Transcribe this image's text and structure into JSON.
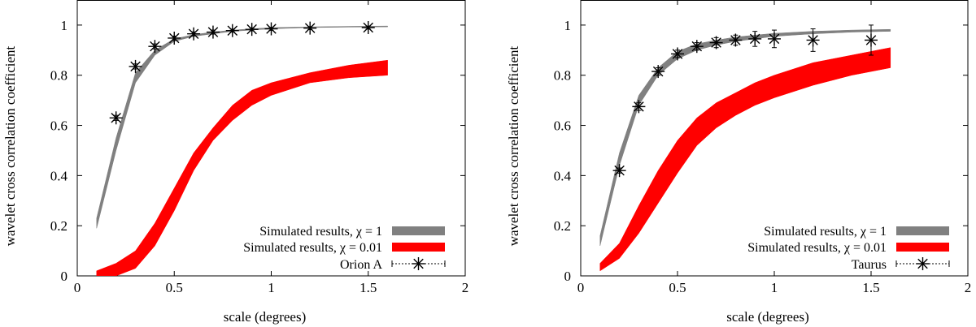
{
  "chart_data": [
    {
      "type": "line",
      "xlabel": "scale (degrees)",
      "ylabel": "wavelet cross correlation coefficient",
      "xlim": [
        0,
        2
      ],
      "ylim": [
        0,
        1.1
      ],
      "xticks": [
        0,
        0.5,
        1,
        1.5,
        2
      ],
      "xtick_labels": [
        "0",
        "0.5",
        "1",
        "1.5",
        "2"
      ],
      "yticks": [
        0,
        0.2,
        0.4,
        0.6,
        0.8,
        1
      ],
      "ytick_labels": [
        "0",
        "0.2",
        "0.4",
        "0.6",
        "0.8",
        "1"
      ],
      "legend_position": "bottom-right",
      "series": [
        {
          "name": "Simulated results, χ = 1",
          "kind": "band",
          "color": "#808080",
          "x": [
            0.1,
            0.2,
            0.3,
            0.4,
            0.5,
            0.6,
            0.7,
            0.8,
            0.9,
            1.0,
            1.2,
            1.4,
            1.6
          ],
          "lower": [
            0.19,
            0.5,
            0.77,
            0.88,
            0.935,
            0.955,
            0.965,
            0.975,
            0.98,
            0.985,
            0.99,
            0.992,
            0.993
          ],
          "upper": [
            0.23,
            0.55,
            0.81,
            0.9,
            0.945,
            0.962,
            0.972,
            0.98,
            0.985,
            0.99,
            0.993,
            0.995,
            0.996
          ]
        },
        {
          "name": "Simulated results, χ = 0.01",
          "kind": "band",
          "color": "#ff0000",
          "x": [
            0.1,
            0.2,
            0.3,
            0.4,
            0.5,
            0.6,
            0.7,
            0.8,
            0.9,
            1.0,
            1.2,
            1.4,
            1.6
          ],
          "lower": [
            0.0,
            0.0,
            0.03,
            0.12,
            0.26,
            0.42,
            0.54,
            0.62,
            0.68,
            0.72,
            0.77,
            0.79,
            0.8
          ],
          "upper": [
            0.02,
            0.05,
            0.1,
            0.21,
            0.35,
            0.49,
            0.59,
            0.68,
            0.74,
            0.77,
            0.81,
            0.84,
            0.86
          ]
        },
        {
          "name": "Orion A",
          "kind": "points",
          "color": "#000000",
          "x": [
            0.2,
            0.3,
            0.4,
            0.5,
            0.6,
            0.7,
            0.8,
            0.9,
            1.0,
            1.2,
            1.5
          ],
          "y": [
            0.63,
            0.835,
            0.915,
            0.948,
            0.965,
            0.972,
            0.978,
            0.983,
            0.985,
            0.988,
            0.99
          ],
          "err": [
            0.01,
            0.01,
            0.01,
            0.008,
            0.008,
            0.008,
            0.006,
            0.006,
            0.006,
            0.006,
            0.006
          ]
        }
      ]
    },
    {
      "type": "line",
      "xlabel": "scale (degrees)",
      "ylabel": "wavelet cross correlation coefficient",
      "xlim": [
        0,
        2
      ],
      "ylim": [
        0,
        1.1
      ],
      "xticks": [
        0,
        0.5,
        1,
        1.5,
        2
      ],
      "xtick_labels": [
        "0",
        "0.5",
        "1",
        "1.5",
        "2"
      ],
      "yticks": [
        0,
        0.2,
        0.4,
        0.6,
        0.8,
        1
      ],
      "ytick_labels": [
        "0",
        "0.2",
        "0.4",
        "0.6",
        "0.8",
        "1"
      ],
      "legend_position": "bottom-right",
      "series": [
        {
          "name": "Simulated results, χ = 1",
          "kind": "band",
          "color": "#808080",
          "x": [
            0.1,
            0.2,
            0.3,
            0.4,
            0.5,
            0.6,
            0.7,
            0.8,
            0.9,
            1.0,
            1.2,
            1.4,
            1.6
          ],
          "lower": [
            0.12,
            0.44,
            0.68,
            0.8,
            0.865,
            0.9,
            0.92,
            0.935,
            0.945,
            0.955,
            0.965,
            0.972,
            0.975
          ],
          "upper": [
            0.16,
            0.49,
            0.72,
            0.83,
            0.895,
            0.925,
            0.94,
            0.952,
            0.96,
            0.967,
            0.975,
            0.98,
            0.983
          ]
        },
        {
          "name": "Simulated results, χ = 0.01",
          "kind": "band",
          "color": "#ff0000",
          "x": [
            0.1,
            0.2,
            0.3,
            0.4,
            0.5,
            0.6,
            0.7,
            0.8,
            0.9,
            1.0,
            1.2,
            1.4,
            1.6
          ],
          "lower": [
            0.02,
            0.07,
            0.17,
            0.29,
            0.41,
            0.52,
            0.59,
            0.64,
            0.68,
            0.71,
            0.76,
            0.8,
            0.83
          ],
          "upper": [
            0.05,
            0.13,
            0.28,
            0.42,
            0.54,
            0.63,
            0.69,
            0.73,
            0.77,
            0.8,
            0.85,
            0.88,
            0.91
          ]
        },
        {
          "name": "Taurus",
          "kind": "points",
          "color": "#000000",
          "x": [
            0.2,
            0.3,
            0.4,
            0.5,
            0.6,
            0.7,
            0.8,
            0.9,
            1.0,
            1.2,
            1.5
          ],
          "y": [
            0.42,
            0.675,
            0.815,
            0.885,
            0.915,
            0.93,
            0.94,
            0.945,
            0.945,
            0.94,
            0.94
          ],
          "err": [
            0.01,
            0.015,
            0.015,
            0.015,
            0.015,
            0.02,
            0.02,
            0.03,
            0.035,
            0.045,
            0.06
          ]
        }
      ]
    }
  ]
}
